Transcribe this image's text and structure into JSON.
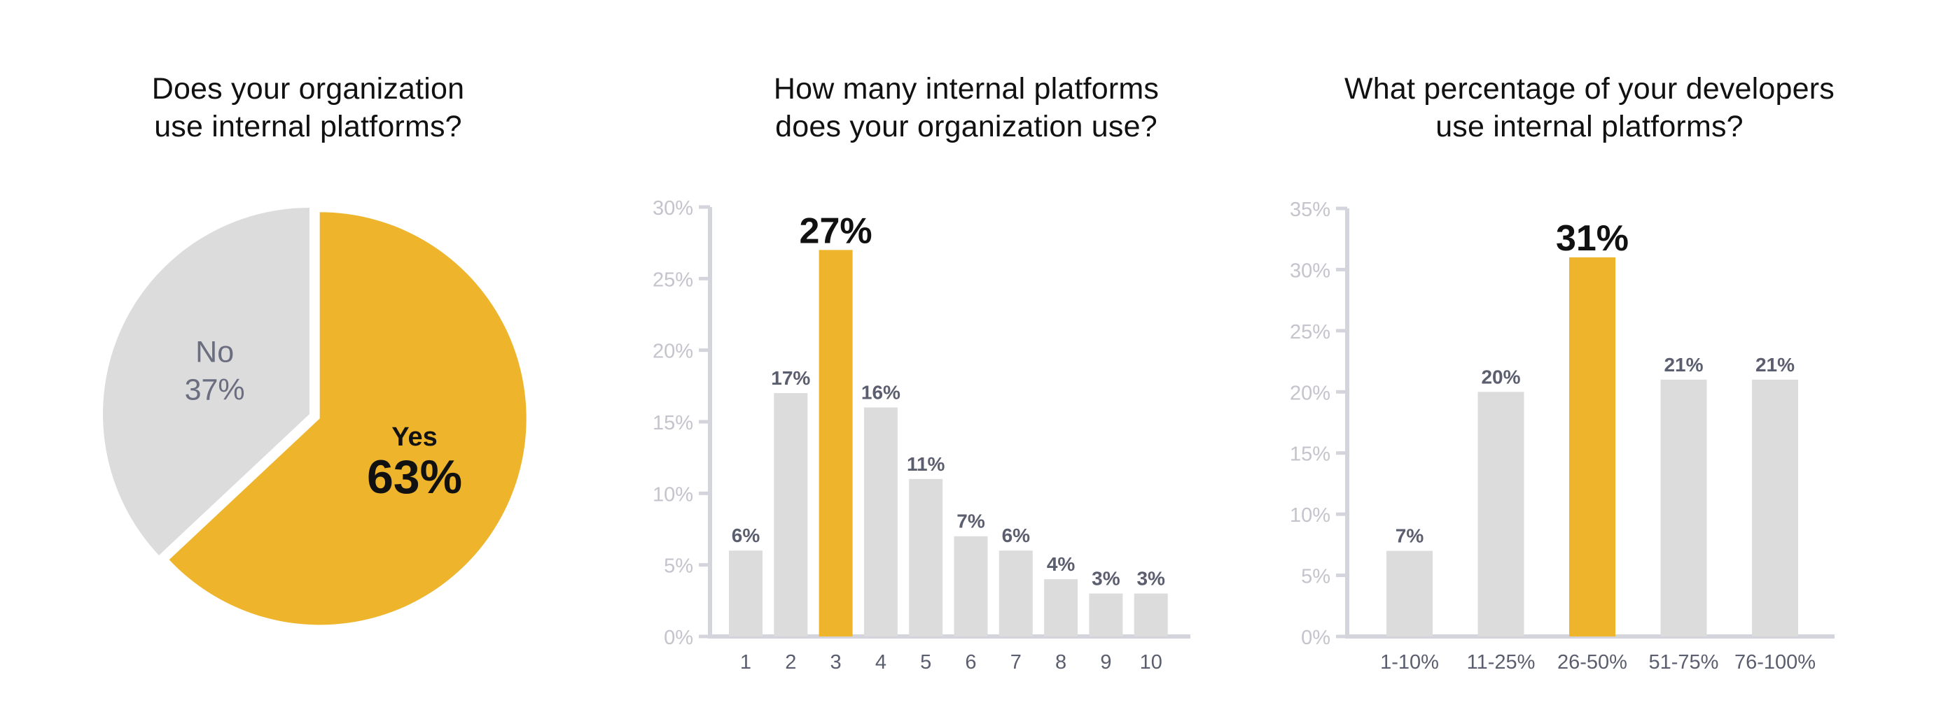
{
  "colors": {
    "accent": "#EDB42C",
    "bar": "#DCDCDC",
    "axis": "#D4D4DC",
    "tick_text": "#C4C4CC",
    "label_text": "#5A5E6E",
    "title_text": "#111111"
  },
  "chart_data": [
    {
      "type": "pie",
      "title": [
        "Does your organization",
        "use internal platforms?"
      ],
      "slices": [
        {
          "label": "Yes",
          "value": 63,
          "display": "63%",
          "color": "#EDB42C",
          "highlight": true
        },
        {
          "label": "No",
          "value": 37,
          "display": "37%",
          "color": "#DCDCDC",
          "highlight": false
        }
      ]
    },
    {
      "type": "bar",
      "title": [
        "How many internal platforms",
        "does your organization use?"
      ],
      "categories": [
        "1",
        "2",
        "3",
        "4",
        "5",
        "6",
        "7",
        "8",
        "9",
        "10"
      ],
      "values": [
        6,
        17,
        27,
        16,
        11,
        7,
        6,
        4,
        3,
        3
      ],
      "value_labels": [
        "6%",
        "17%",
        "27%",
        "16%",
        "11%",
        "7%",
        "6%",
        "4%",
        "3%",
        "3%"
      ],
      "highlight_index": 2,
      "ylim": [
        0,
        30
      ],
      "yticks": [
        0,
        5,
        10,
        15,
        20,
        25,
        30
      ],
      "ytick_labels": [
        "0%",
        "5%",
        "10%",
        "15%",
        "20%",
        "25%",
        "30%"
      ],
      "xlabel": "",
      "ylabel": ""
    },
    {
      "type": "bar",
      "title": [
        "What percentage of your developers",
        "use internal platforms?"
      ],
      "categories": [
        "1-10%",
        "11-25%",
        "26-50%",
        "51-75%",
        "76-100%"
      ],
      "values": [
        7,
        20,
        31,
        21,
        21
      ],
      "value_labels": [
        "7%",
        "20%",
        "31%",
        "21%",
        "21%"
      ],
      "highlight_index": 2,
      "ylim": [
        0,
        35
      ],
      "yticks": [
        0,
        5,
        10,
        15,
        20,
        25,
        30,
        35
      ],
      "ytick_labels": [
        "0%",
        "5%",
        "10%",
        "15%",
        "20%",
        "25%",
        "30%",
        "35%"
      ],
      "xlabel": "",
      "ylabel": ""
    }
  ]
}
